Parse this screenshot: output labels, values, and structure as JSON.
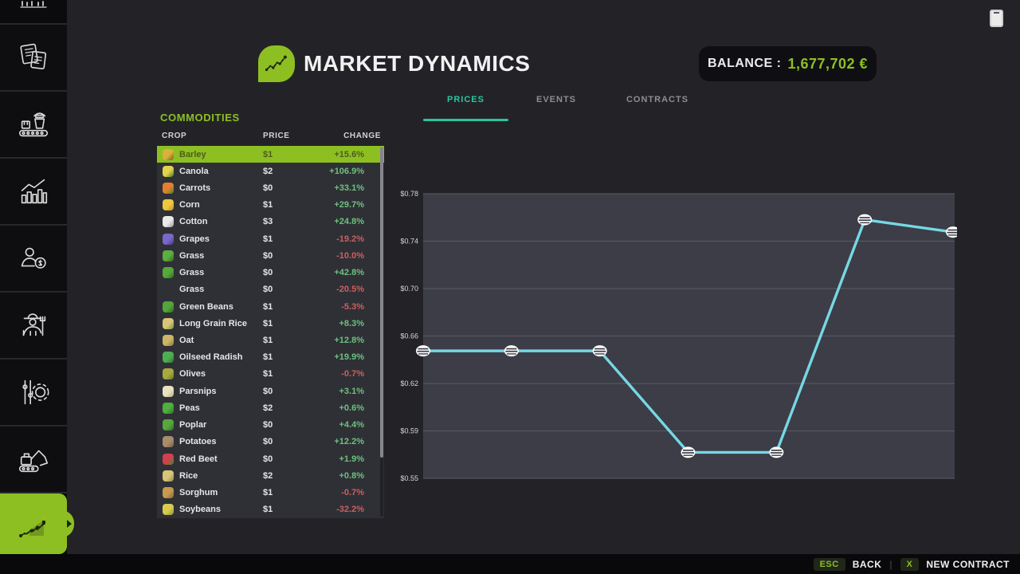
{
  "app": {
    "title": "MARKET DYNAMICS",
    "balance_label": "BALANCE :",
    "balance_value": "1,677,702 €",
    "accent_color": "#8dbf23",
    "tab_accent_color": "#2bc4a1"
  },
  "tabs": [
    {
      "label": "PRICES",
      "active": true
    },
    {
      "label": "EVENTS",
      "active": false
    },
    {
      "label": "CONTRACTS",
      "active": false
    }
  ],
  "sidebar": {
    "items": [
      {
        "icon": "truncated-top-icon",
        "partial": true,
        "active": false
      },
      {
        "icon": "documents-icon",
        "partial": false,
        "active": false
      },
      {
        "icon": "production-line-icon",
        "partial": false,
        "active": false
      },
      {
        "icon": "statistics-icon",
        "partial": false,
        "active": false
      },
      {
        "icon": "dealer-money-icon",
        "partial": false,
        "active": false
      },
      {
        "icon": "farmer-icon",
        "partial": false,
        "active": false
      },
      {
        "icon": "settings-gear-icon",
        "partial": false,
        "active": false
      },
      {
        "icon": "excavator-icon",
        "partial": false,
        "active": false
      },
      {
        "icon": "market-dynamics-icon",
        "partial": false,
        "active": true
      }
    ]
  },
  "commodities": {
    "title": "COMMODITIES",
    "columns": [
      "CROP",
      "PRICE",
      "CHANGE"
    ],
    "rows": [
      {
        "crop": "Barley",
        "price": "$1",
        "change": "+15.6%",
        "dir": "up",
        "selected": true,
        "icon": "barley-icon",
        "c1": "#d9b13c",
        "c2": "#7a5c1e"
      },
      {
        "crop": "Canola",
        "price": "$2",
        "change": "+106.9%",
        "dir": "up",
        "selected": false,
        "icon": "canola-icon",
        "c1": "#e3d24a",
        "c2": "#3f7a2a"
      },
      {
        "crop": "Carrots",
        "price": "$0",
        "change": "+33.1%",
        "dir": "up",
        "selected": false,
        "icon": "carrots-icon",
        "c1": "#e2802f",
        "c2": "#3f8a2a"
      },
      {
        "crop": "Corn",
        "price": "$1",
        "change": "+29.7%",
        "dir": "up",
        "selected": false,
        "icon": "corn-icon",
        "c1": "#ecc93f",
        "c2": "#c8901f"
      },
      {
        "crop": "Cotton",
        "price": "$3",
        "change": "+24.8%",
        "dir": "up",
        "selected": false,
        "icon": "cotton-icon",
        "c1": "#e9e9e9",
        "c2": "#9a9a9a"
      },
      {
        "crop": "Grapes",
        "price": "$1",
        "change": "-19.2%",
        "dir": "down",
        "selected": false,
        "icon": "grapes-icon",
        "c1": "#7a68c9",
        "c2": "#4a3a8a"
      },
      {
        "crop": "Grass",
        "price": "$0",
        "change": "-10.0%",
        "dir": "down",
        "selected": false,
        "icon": "grass-icon",
        "c1": "#5cae3d",
        "c2": "#2f6b22"
      },
      {
        "crop": "Grass",
        "price": "$0",
        "change": "+42.8%",
        "dir": "up",
        "selected": false,
        "icon": "grass-bale-icon",
        "c1": "#56a83a",
        "c2": "#2f6b22"
      },
      {
        "crop": "Grass",
        "price": "$0",
        "change": "-20.5%",
        "dir": "down",
        "selected": false,
        "icon": null,
        "c1": null,
        "c2": null
      },
      {
        "crop": "Green Beans",
        "price": "$1",
        "change": "-5.3%",
        "dir": "down",
        "selected": false,
        "icon": "green-beans-icon",
        "c1": "#55a63a",
        "c2": "#2d6f1f"
      },
      {
        "crop": "Long Grain Rice",
        "price": "$1",
        "change": "+8.3%",
        "dir": "up",
        "selected": false,
        "icon": "long-grain-rice-icon",
        "c1": "#d9c478",
        "c2": "#6f9a3a"
      },
      {
        "crop": "Oat",
        "price": "$1",
        "change": "+12.8%",
        "dir": "up",
        "selected": false,
        "icon": "oat-icon",
        "c1": "#cdb568",
        "c2": "#8a7a3a"
      },
      {
        "crop": "Oilseed Radish",
        "price": "$1",
        "change": "+19.9%",
        "dir": "up",
        "selected": false,
        "icon": "oilseed-radish-icon",
        "c1": "#4fae52",
        "c2": "#2a7a2e"
      },
      {
        "crop": "Olives",
        "price": "$1",
        "change": "-0.7%",
        "dir": "down",
        "selected": false,
        "icon": "olives-icon",
        "c1": "#a9a93f",
        "c2": "#6f7a22"
      },
      {
        "crop": "Parsnips",
        "price": "$0",
        "change": "+3.1%",
        "dir": "up",
        "selected": false,
        "icon": "parsnips-icon",
        "c1": "#e8e2c2",
        "c2": "#b9ae82"
      },
      {
        "crop": "Peas",
        "price": "$2",
        "change": "+0.6%",
        "dir": "up",
        "selected": false,
        "icon": "peas-icon",
        "c1": "#4fae3f",
        "c2": "#2a7a22"
      },
      {
        "crop": "Poplar",
        "price": "$0",
        "change": "+4.4%",
        "dir": "up",
        "selected": false,
        "icon": "poplar-icon",
        "c1": "#57a83d",
        "c2": "#2e6f26"
      },
      {
        "crop": "Potatoes",
        "price": "$0",
        "change": "+12.2%",
        "dir": "up",
        "selected": false,
        "icon": "potatoes-icon",
        "c1": "#a78d6b",
        "c2": "#7a6248"
      },
      {
        "crop": "Red Beet",
        "price": "$0",
        "change": "+1.9%",
        "dir": "up",
        "selected": false,
        "icon": "red-beet-icon",
        "c1": "#d24050",
        "c2": "#3f8a2a"
      },
      {
        "crop": "Rice",
        "price": "$2",
        "change": "+0.8%",
        "dir": "up",
        "selected": false,
        "icon": "rice-icon",
        "c1": "#d9c478",
        "c2": "#9a8a4a"
      },
      {
        "crop": "Sorghum",
        "price": "$1",
        "change": "-0.7%",
        "dir": "down",
        "selected": false,
        "icon": "sorghum-icon",
        "c1": "#c49a50",
        "c2": "#8a6a2a"
      },
      {
        "crop": "Soybeans",
        "price": "$1",
        "change": "-32.2%",
        "dir": "down",
        "selected": false,
        "icon": "soybeans-icon",
        "c1": "#d9cb4f",
        "c2": "#8a9a2e"
      }
    ]
  },
  "chart_data": {
    "type": "line",
    "title": "Barley price history",
    "x": [
      0,
      1,
      2,
      3,
      4,
      5,
      6
    ],
    "values": [
      0.653,
      0.653,
      0.653,
      0.571,
      0.571,
      0.759,
      0.749
    ],
    "y_ticks": [
      "$0.78",
      "$0.74",
      "$0.70",
      "$0.66",
      "$0.62",
      "$0.59",
      "$0.55"
    ],
    "y_range": [
      0.55,
      0.78
    ],
    "x_labels": [],
    "grid": true,
    "legend": "none",
    "line_color": "#76d8e4",
    "panel_color": "#3c3d47",
    "grid_color": "#595a64",
    "marker": "coin-marker"
  },
  "footer": {
    "esc_key": "ESC",
    "back_label": "BACK",
    "separator": "|",
    "x_key": "X",
    "new_contract_label": "NEW CONTRACT"
  },
  "colors": {
    "background": "#232327",
    "sidebar": "#0b0b0d",
    "table_bg": "#2f3036",
    "positive": "#6dc17e",
    "negative": "#c9605f",
    "selected_row_text": "#4f5d1b"
  }
}
